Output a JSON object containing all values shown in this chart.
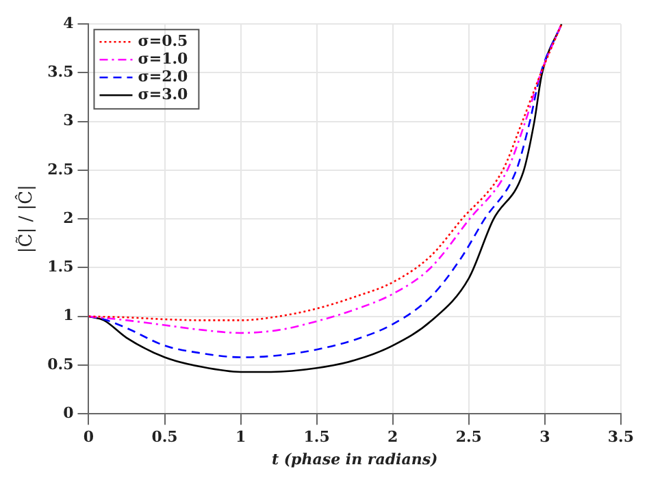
{
  "chart_data": {
    "type": "line",
    "xlabel": "t (phase in radians)",
    "ylabel": "|C̃| / |Ĉ|",
    "xlim": [
      0,
      3.5
    ],
    "xticks": [
      0,
      0.5,
      1,
      1.5,
      2,
      2.5,
      3,
      3.5
    ],
    "ylim": [
      0,
      4
    ],
    "yticks": [
      0,
      0.5,
      1,
      1.5,
      2,
      2.5,
      3,
      3.5,
      4
    ],
    "grid": true,
    "legend": "top left",
    "marker": "none",
    "series": [
      {
        "name": "σ=0.5",
        "color": "#ff0000",
        "line_style": "dotted",
        "x": [
          0,
          0.25,
          0.5,
          0.75,
          1,
          1.25,
          1.5,
          1.75,
          2,
          2.25,
          2.45,
          2.72,
          2.85,
          2.97,
          3.11
        ],
        "values": [
          1,
          0.99,
          0.97,
          0.96,
          0.96,
          1.0,
          1.08,
          1.2,
          1.35,
          1.62,
          1.99,
          2.49,
          2.99,
          3.48,
          4
        ]
      },
      {
        "name": "σ=1.0",
        "color": "#ff00ff",
        "line_style": "dashdot",
        "x": [
          0,
          0.25,
          0.5,
          0.75,
          1,
          1.25,
          1.5,
          1.75,
          2,
          2.25,
          2.5,
          2.75,
          2.87,
          2.97,
          3.11
        ],
        "values": [
          1,
          0.96,
          0.91,
          0.86,
          0.83,
          0.86,
          0.95,
          1.07,
          1.23,
          1.5,
          1.99,
          2.49,
          2.99,
          3.48,
          4
        ]
      },
      {
        "name": "σ=2.0",
        "color": "#0000ff",
        "line_style": "dashed",
        "x": [
          0,
          0.1,
          0.25,
          0.5,
          0.75,
          1,
          1.25,
          1.5,
          1.75,
          2,
          2.25,
          2.45,
          2.6,
          2.81,
          2.9,
          2.97,
          3.11
        ],
        "values": [
          1,
          0.97,
          0.88,
          0.7,
          0.62,
          0.58,
          0.6,
          0.66,
          0.76,
          0.92,
          1.2,
          1.6,
          1.99,
          2.49,
          2.99,
          3.48,
          4
        ]
      },
      {
        "name": "σ=3.0",
        "color": "#000000",
        "line_style": "solid",
        "x": [
          0,
          0.1,
          0.25,
          0.5,
          0.75,
          1,
          1.2,
          1.5,
          1.75,
          2,
          2.25,
          2.5,
          2.66,
          2.86,
          2.93,
          2.98,
          3.11
        ],
        "values": [
          1,
          0.96,
          0.78,
          0.58,
          0.48,
          0.43,
          0.43,
          0.47,
          0.55,
          0.7,
          0.95,
          1.39,
          1.99,
          2.49,
          2.99,
          3.48,
          4
        ]
      }
    ]
  }
}
